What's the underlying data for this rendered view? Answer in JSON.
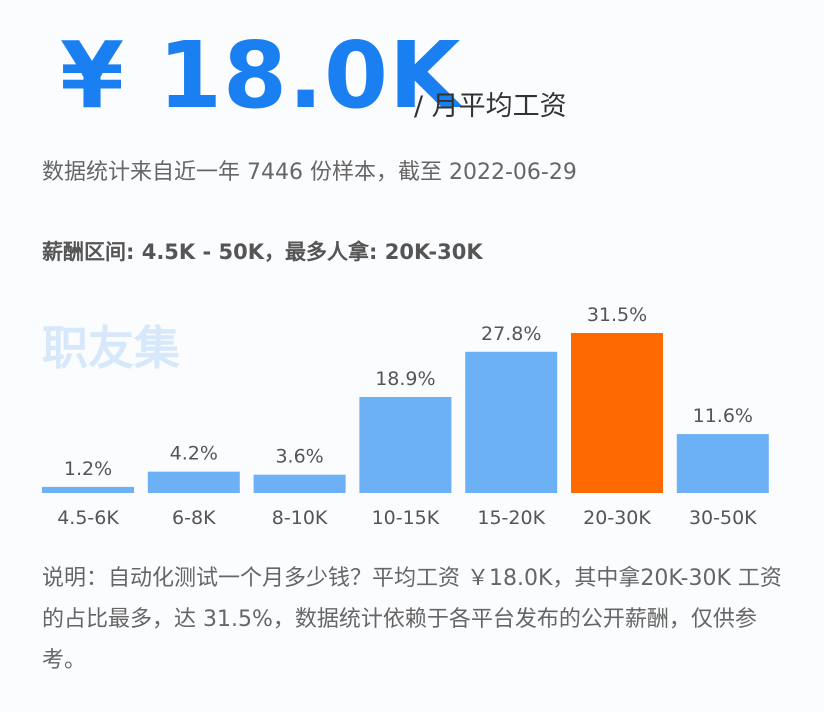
{
  "header": {
    "price": "¥ 18.0K",
    "unit": "/ 月平均工资"
  },
  "subtitle": "数据统计来自近一年 7446 份样本，截至 2022-06-29",
  "range_line": "薪酬区间: 4.5K - 50K，最多人拿: 20K-30K",
  "watermark": "职友集",
  "chart_data": {
    "type": "bar",
    "categories": [
      "4.5-6K",
      "6-8K",
      "8-10K",
      "10-15K",
      "15-20K",
      "20-30K",
      "30-50K"
    ],
    "values": [
      1.2,
      4.2,
      3.6,
      18.9,
      27.8,
      31.5,
      11.6
    ],
    "value_labels": [
      "1.2%",
      "4.2%",
      "3.6%",
      "18.9%",
      "27.8%",
      "31.5%",
      "11.6%"
    ],
    "colors": [
      "#6cb0f6",
      "#6cb0f6",
      "#6cb0f6",
      "#6cb0f6",
      "#6cb0f6",
      "#ff6a00",
      "#6cb0f6"
    ]
  },
  "note": "说明：自动化测试一个月多少钱？平均工资 ￥18.0K，其中拿20K-30K 工资的占比最多，达 31.5%，数据统计依赖于各平台发布的公开薪酬，仅供参考。"
}
